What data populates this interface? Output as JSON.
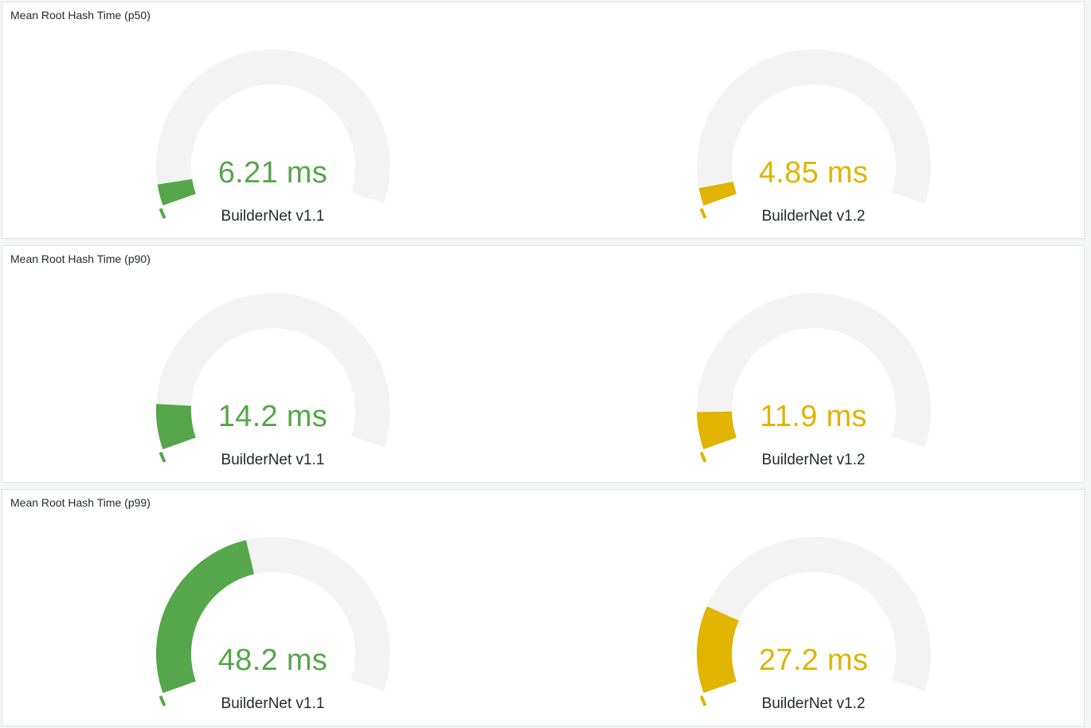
{
  "page": {
    "background": "#f4f5f5",
    "panel_background": "#ffffff",
    "panel_border_color": "#e1e2e3",
    "title_color": "#24292e",
    "label_color": "#24292e",
    "gauge_track_color": "#f2f3f2",
    "accent_green": "#56a64b",
    "accent_yellow": "#e0b400"
  },
  "chart_data": [
    {
      "type": "gauge",
      "title": "Mean Root Hash Time (p50)",
      "unit": "ms",
      "layout": {
        "arc_start_deg": 198.5,
        "arc_end_deg": -18.5,
        "label_position": "bottom"
      },
      "series": [
        {
          "name": "BuilderNet v1.1",
          "value": 6.21,
          "display_value": "6.21 ms",
          "color": "#56a64b",
          "min": 0,
          "max": 140
        },
        {
          "name": "BuilderNet v1.2",
          "value": 4.85,
          "display_value": "4.85 ms",
          "color": "#e0b400",
          "min": 0,
          "max": 135
        }
      ]
    },
    {
      "type": "gauge",
      "title": "Mean Root Hash Time (p90)",
      "unit": "ms",
      "layout": {
        "arc_start_deg": 198.5,
        "arc_end_deg": -18.5,
        "label_position": "bottom"
      },
      "series": [
        {
          "name": "BuilderNet v1.1",
          "value": 14.2,
          "display_value": "14.2 ms",
          "color": "#56a64b",
          "min": 0,
          "max": 143
        },
        {
          "name": "BuilderNet v1.2",
          "value": 11.9,
          "display_value": "11.9 ms",
          "color": "#e0b400",
          "min": 0,
          "max": 147
        }
      ]
    },
    {
      "type": "gauge",
      "title": "Mean Root Hash Time (p99)",
      "unit": "ms",
      "layout": {
        "arc_start_deg": 198.5,
        "arc_end_deg": -18.5,
        "label_position": "bottom"
      },
      "series": [
        {
          "name": "BuilderNet v1.1",
          "value": 48.2,
          "display_value": "48.2 ms",
          "color": "#56a64b",
          "min": 0,
          "max": 110
        },
        {
          "name": "BuilderNet v1.2",
          "value": 27.2,
          "display_value": "27.2 ms",
          "color": "#e0b400",
          "min": 0,
          "max": 139
        }
      ]
    }
  ]
}
